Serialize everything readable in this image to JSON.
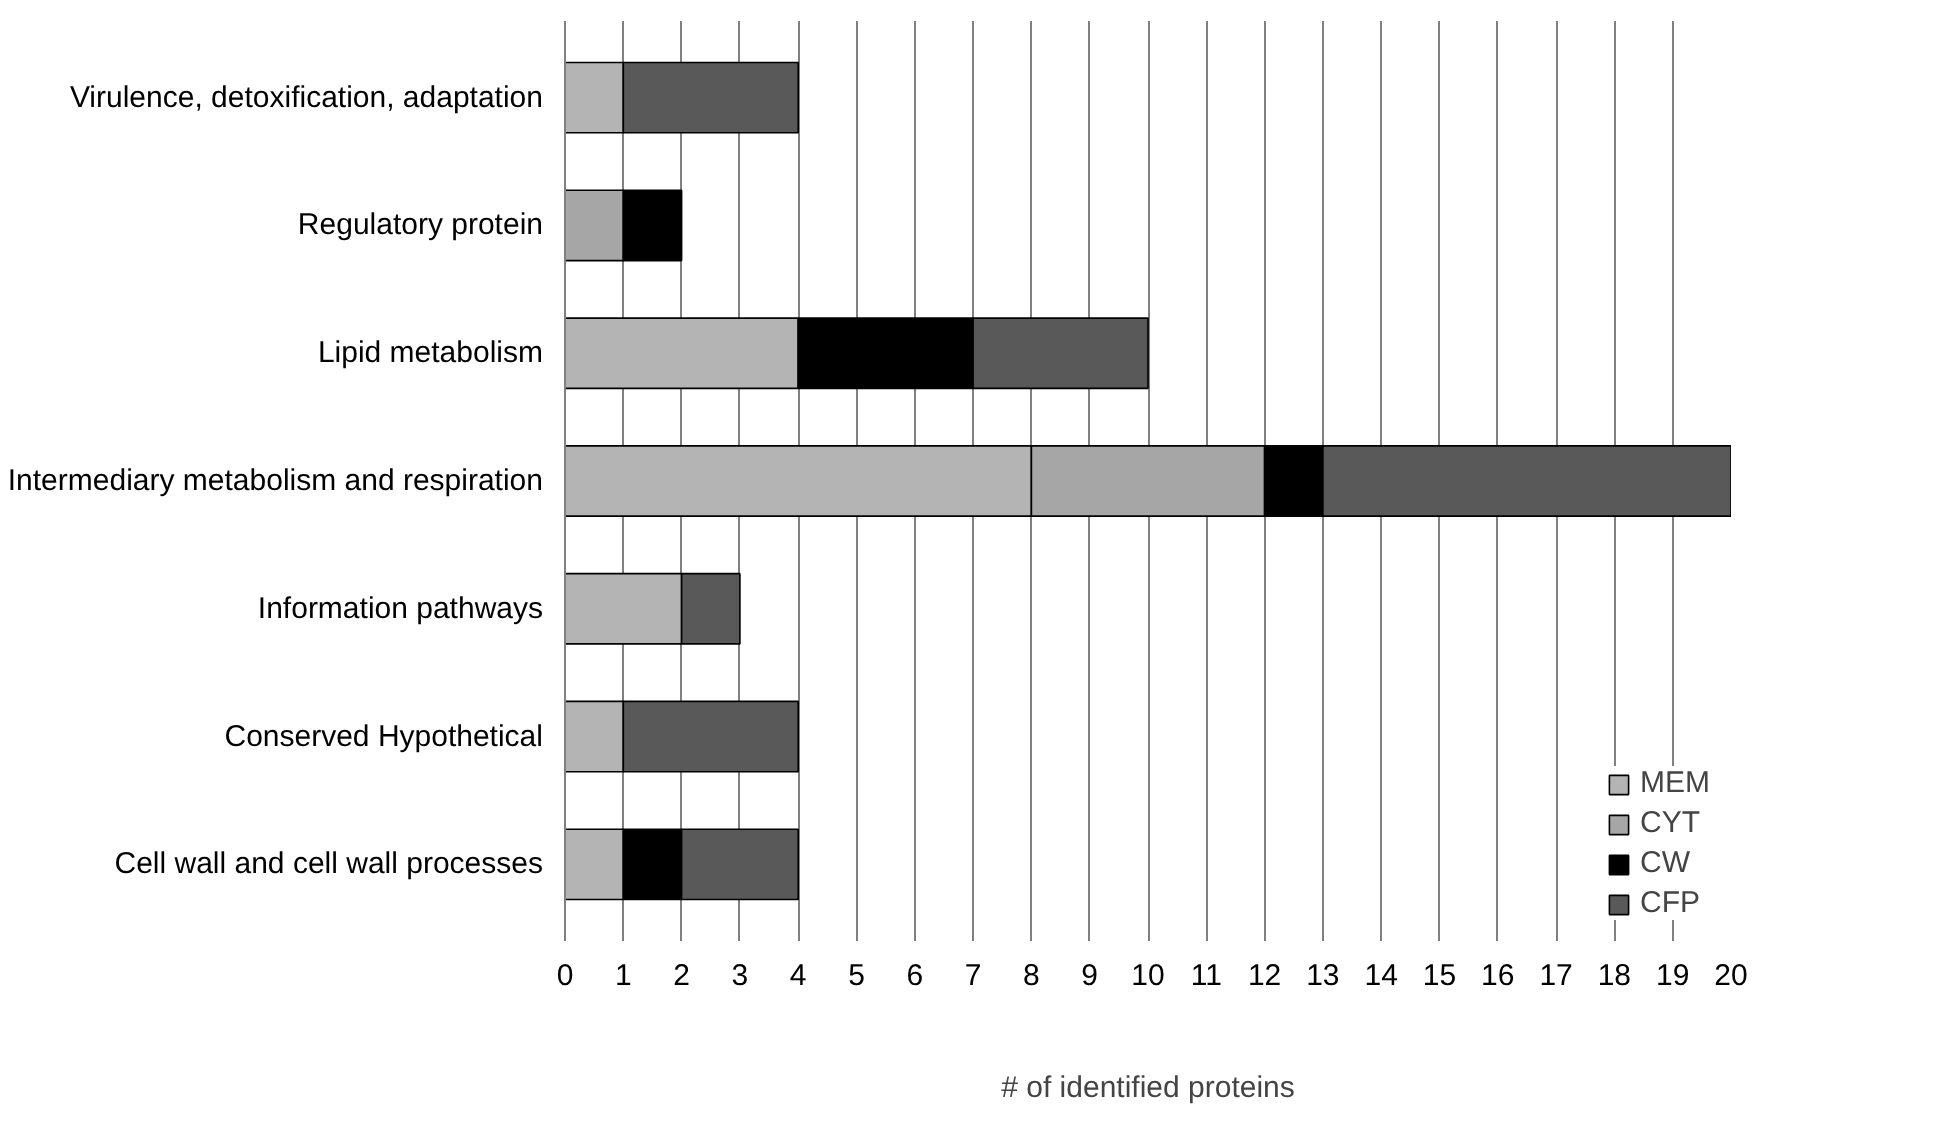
{
  "chart_data": {
    "type": "bar",
    "orientation": "horizontal",
    "stacked": true,
    "xlabel": "# of identified proteins",
    "categories": [
      "Virulence, detoxification, adaptation",
      "Regulatory protein",
      "Lipid metabolism",
      "Intermediary metabolism and respiration",
      "Information pathways",
      "Conserved Hypothetical",
      "Cell wall and cell wall processes"
    ],
    "series": [
      {
        "name": "MEM",
        "color": "#b4b4b4",
        "values": [
          1,
          0,
          4,
          8,
          2,
          1,
          1
        ]
      },
      {
        "name": "CYT",
        "color": "#a6a6a6",
        "values": [
          0,
          1,
          0,
          4,
          0,
          0,
          0
        ]
      },
      {
        "name": "CW",
        "color": "#000000",
        "values": [
          0,
          1,
          3,
          1,
          0,
          0,
          1
        ]
      },
      {
        "name": "CFP",
        "color": "#595959",
        "values": [
          3,
          0,
          3,
          7,
          1,
          3,
          2
        ]
      }
    ],
    "xlim": [
      0,
      20
    ],
    "xticks": [
      0,
      1,
      2,
      3,
      4,
      5,
      6,
      7,
      8,
      9,
      10,
      11,
      12,
      13,
      14,
      15,
      16,
      17,
      18,
      19,
      20
    ],
    "grid": "x",
    "legend": "bottom right"
  }
}
